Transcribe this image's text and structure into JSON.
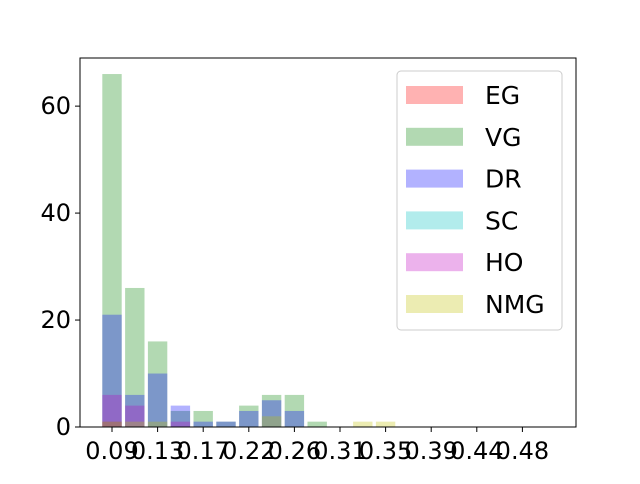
{
  "chart_data": {
    "type": "bar",
    "title": "",
    "xlabel": "",
    "ylabel": "",
    "ylim": [
      0,
      69
    ],
    "yticks": [
      0,
      20,
      40,
      60
    ],
    "xtick_labels": [
      "0.09",
      "0.13",
      "0.17",
      "0.22",
      "0.26",
      "0.31",
      "0.35",
      "0.39",
      "0.44",
      "0.48"
    ],
    "legend_position": "top-right",
    "grid": false,
    "bins": [
      "0.09",
      "0.11",
      "0.13",
      "0.15",
      "0.17",
      "0.20",
      "0.22",
      "0.24",
      "0.26",
      "0.28",
      "0.31",
      "0.33",
      "0.35",
      "0.37",
      "0.39",
      "0.41",
      "0.44",
      "0.46",
      "0.48",
      "0.50"
    ],
    "series": [
      {
        "name": "EG",
        "color": "#ff0000",
        "values": [
          1,
          0,
          0,
          0,
          0,
          0,
          0,
          0,
          0,
          0,
          0,
          0,
          0,
          0,
          0,
          0,
          0,
          0,
          0,
          0
        ]
      },
      {
        "name": "VG",
        "color": "#008000",
        "values": [
          66,
          26,
          16,
          3,
          3,
          1,
          4,
          6,
          6,
          1,
          0,
          0,
          0,
          0,
          0,
          0,
          0,
          0,
          0,
          0
        ]
      },
      {
        "name": "DR",
        "color": "#0000ff",
        "values": [
          21,
          6,
          10,
          4,
          1,
          1,
          3,
          5,
          3,
          0,
          0,
          0,
          0,
          0,
          0,
          0,
          0,
          0,
          0,
          0
        ]
      },
      {
        "name": "SC",
        "color": "#00bfbf",
        "values": [
          0,
          0,
          0,
          0,
          0,
          0,
          0,
          0,
          0,
          0,
          0,
          0,
          0,
          0,
          0,
          0,
          0,
          0,
          0,
          0
        ]
      },
      {
        "name": "HO",
        "color": "#bf00bf",
        "values": [
          6,
          4,
          0,
          1,
          0,
          0,
          0,
          0,
          0,
          0,
          0,
          0,
          0,
          0,
          0,
          0,
          0,
          0,
          0,
          0
        ]
      },
      {
        "name": "NMG",
        "color": "#bfbf00",
        "values": [
          1,
          1,
          1,
          0,
          0,
          0,
          0,
          2,
          0,
          0,
          0,
          1,
          1,
          0,
          0,
          0,
          0,
          0,
          0,
          0
        ]
      }
    ]
  }
}
